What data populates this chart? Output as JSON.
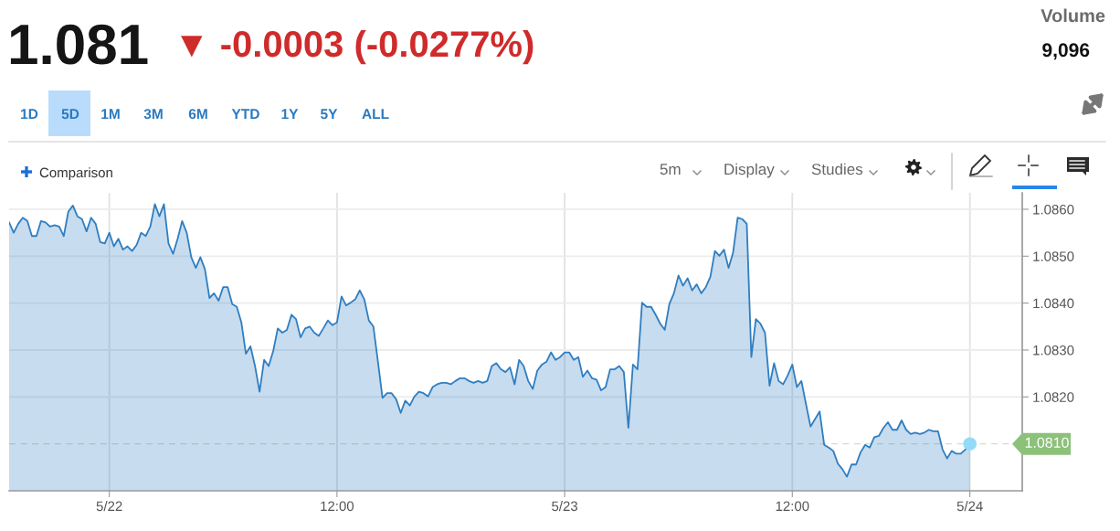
{
  "chart_data": {
    "type": "area",
    "title": "1.081",
    "subtitle": "▼ -0.0003 (-0.0277%)",
    "annotations": [
      "Volume",
      "9,096",
      "1D",
      "5D",
      "1M",
      "3M",
      "6M",
      "YTD",
      "1Y",
      "5Y",
      "ALL",
      "Comparison",
      "5m",
      "Display",
      "Studies"
    ],
    "categories": [
      null,
      null,
      null,
      null,
      null,
      null,
      null,
      null,
      null,
      null,
      null,
      null,
      null,
      null,
      null,
      null,
      null,
      null,
      null,
      null,
      null,
      null,
      "5/22",
      null,
      null,
      null,
      null,
      null,
      null,
      null,
      null,
      null,
      null,
      null,
      null,
      null,
      null,
      null,
      null,
      null,
      null,
      null,
      null,
      null,
      null,
      null,
      null,
      null,
      null,
      null,
      null,
      null,
      null,
      null,
      null,
      null,
      null,
      null,
      null,
      null,
      null,
      null,
      null,
      null,
      null,
      null,
      null,
      null,
      null,
      null,
      null,
      null,
      "12:00",
      null,
      null,
      null,
      null,
      null,
      null,
      null,
      null,
      null,
      null,
      null,
      null,
      null,
      null,
      null,
      null,
      null,
      null,
      null,
      null,
      null,
      null,
      null,
      null,
      null,
      null,
      null,
      null,
      null,
      null,
      null,
      null,
      null,
      null,
      null,
      null,
      null,
      null,
      null,
      null,
      null,
      null,
      null,
      null,
      null,
      null,
      null,
      null,
      null,
      "5/23",
      null,
      null,
      null,
      null,
      null,
      null,
      null,
      null,
      null,
      null,
      null,
      null,
      null,
      null,
      null,
      null,
      null,
      null,
      null,
      null,
      null,
      null,
      null,
      null,
      null,
      null,
      null,
      null,
      null,
      null,
      null,
      null,
      null,
      null,
      null,
      null,
      null,
      null,
      null,
      null,
      null,
      null,
      null,
      null,
      null,
      null,
      null,
      null,
      null,
      "12:00",
      null,
      null,
      null,
      null,
      null,
      null,
      null,
      null,
      null,
      null,
      null,
      null,
      null,
      null,
      null,
      null,
      null,
      null,
      null,
      null,
      null,
      null,
      null,
      null,
      null,
      null,
      null,
      null,
      null,
      null,
      null,
      null,
      null,
      null,
      null,
      null,
      null,
      null,
      "5/24"
    ],
    "series": [
      {
        "color": "#2f7ec1",
        "values": [
          1.08572,
          1.0855,
          1.08569,
          1.08582,
          1.08575,
          1.08543,
          1.08543,
          1.08575,
          1.08572,
          1.08563,
          1.08566,
          1.08563,
          1.08543,
          1.08595,
          1.08608,
          1.08585,
          1.08579,
          1.08553,
          1.08582,
          1.08569,
          1.0853,
          1.08527,
          1.0855,
          1.08521,
          1.08537,
          1.08514,
          1.08521,
          1.08511,
          1.08524,
          1.0855,
          1.08543,
          1.08563,
          1.08611,
          1.08585,
          1.08611,
          1.08527,
          1.08505,
          1.08537,
          1.08575,
          1.0855,
          1.08498,
          1.08475,
          1.08498,
          1.08472,
          1.08411,
          1.08421,
          1.08405,
          1.08434,
          1.08434,
          1.08398,
          1.08392,
          1.08359,
          1.08292,
          1.08308,
          1.08266,
          1.08211,
          1.08279,
          1.08266,
          1.08298,
          1.08346,
          1.08337,
          1.08343,
          1.08375,
          1.08366,
          1.08327,
          1.08346,
          1.0835,
          1.08337,
          1.0833,
          1.08346,
          1.08363,
          1.08353,
          1.08359,
          1.08414,
          1.08395,
          1.08401,
          1.08408,
          1.08427,
          1.08408,
          1.08363,
          1.0835,
          1.08275,
          1.08198,
          1.08208,
          1.08208,
          1.08195,
          1.08166,
          1.08192,
          1.08182,
          1.08201,
          1.08211,
          1.08208,
          1.08201,
          1.08221,
          1.08227,
          1.0823,
          1.0823,
          1.08227,
          1.08234,
          1.0824,
          1.0824,
          1.08234,
          1.0823,
          1.08234,
          1.0823,
          1.08234,
          1.08266,
          1.08272,
          1.08259,
          1.08253,
          1.08263,
          1.08227,
          1.08279,
          1.08266,
          1.08234,
          1.08217,
          1.08256,
          1.08269,
          1.08275,
          1.08295,
          1.08279,
          1.08285,
          1.08295,
          1.08295,
          1.08279,
          1.08285,
          1.08243,
          1.08256,
          1.0824,
          1.08237,
          1.08214,
          1.08221,
          1.08259,
          1.08259,
          1.08266,
          1.08253,
          1.08134,
          1.08269,
          1.08259,
          1.08401,
          1.08392,
          1.08392,
          1.08375,
          1.08356,
          1.08343,
          1.08398,
          1.08421,
          1.08459,
          1.08437,
          1.08453,
          1.08427,
          1.0844,
          1.08421,
          1.08434,
          1.08456,
          1.08511,
          1.08501,
          1.08514,
          1.08475,
          1.08508,
          1.08582,
          1.08579,
          1.08569,
          1.08285,
          1.08366,
          1.08356,
          1.08337,
          1.08224,
          1.08272,
          1.08234,
          1.08227,
          1.08246,
          1.08269,
          1.08221,
          1.08234,
          1.08185,
          1.08137,
          1.08153,
          1.08169,
          1.08098,
          1.08092,
          1.08085,
          1.08058,
          1.08046,
          1.0803,
          1.08056,
          1.08056,
          1.08082,
          1.08098,
          1.08092,
          1.08114,
          1.08117,
          1.08134,
          1.08146,
          1.0813,
          1.0813,
          1.0815,
          1.0813,
          1.08121,
          1.08124,
          1.08121,
          1.08124,
          1.0813,
          1.08127,
          1.08127,
          1.08088,
          1.08069,
          1.08085,
          1.08079,
          1.08079,
          1.08088,
          1.081
        ]
      },
      {
        "type": "scatter",
        "color": "#93dbf8",
        "values": [
          null,
          null,
          null,
          null,
          null,
          null,
          null,
          null,
          null,
          null,
          null,
          null,
          null,
          null,
          null,
          null,
          null,
          null,
          null,
          null,
          null,
          null,
          null,
          null,
          null,
          null,
          null,
          null,
          null,
          null,
          null,
          null,
          null,
          null,
          null,
          null,
          null,
          null,
          null,
          null,
          null,
          null,
          null,
          null,
          null,
          null,
          null,
          null,
          null,
          null,
          null,
          null,
          null,
          null,
          null,
          null,
          null,
          null,
          null,
          null,
          null,
          null,
          null,
          null,
          null,
          null,
          null,
          null,
          null,
          null,
          null,
          null,
          null,
          null,
          null,
          null,
          null,
          null,
          null,
          null,
          null,
          null,
          null,
          null,
          null,
          null,
          null,
          null,
          null,
          null,
          null,
          null,
          null,
          null,
          null,
          null,
          null,
          null,
          null,
          null,
          null,
          null,
          null,
          null,
          null,
          null,
          null,
          null,
          null,
          null,
          null,
          null,
          null,
          null,
          null,
          null,
          null,
          null,
          null,
          null,
          null,
          null,
          null,
          null,
          null,
          null,
          null,
          null,
          null,
          null,
          null,
          null,
          null,
          null,
          null,
          null,
          null,
          null,
          null,
          null,
          null,
          null,
          null,
          null,
          null,
          null,
          null,
          null,
          null,
          null,
          null,
          null,
          null,
          null,
          null,
          null,
          null,
          null,
          null,
          null,
          null,
          null,
          null,
          null,
          null,
          null,
          null,
          null,
          null,
          null,
          null,
          null,
          null,
          null,
          null,
          null,
          null,
          null,
          null,
          null,
          null,
          null,
          null,
          null,
          null,
          null,
          null,
          null,
          null,
          null,
          null,
          null,
          null,
          null,
          null,
          null,
          null,
          null,
          null,
          null,
          null,
          null,
          null,
          null,
          null,
          null,
          null,
          null,
          null,
          null,
          null,
          1.081
        ]
      }
    ],
    "ylim": [
      1.08,
      1.08635
    ],
    "yticks": [
      {
        "value": 1.082,
        "label": "1.0820"
      },
      {
        "value": 1.083,
        "label": "1.0830"
      },
      {
        "value": 1.084,
        "label": "1.0840"
      },
      {
        "value": 1.085,
        "label": "1.0850"
      },
      {
        "value": 1.086,
        "label": "1.0860"
      }
    ],
    "ref_lines": [
      {
        "axis": "y",
        "value": 1.081,
        "label": "1.0810",
        "color": "#8cc17a",
        "line_style": "dashed"
      }
    ],
    "grid": true
  }
}
